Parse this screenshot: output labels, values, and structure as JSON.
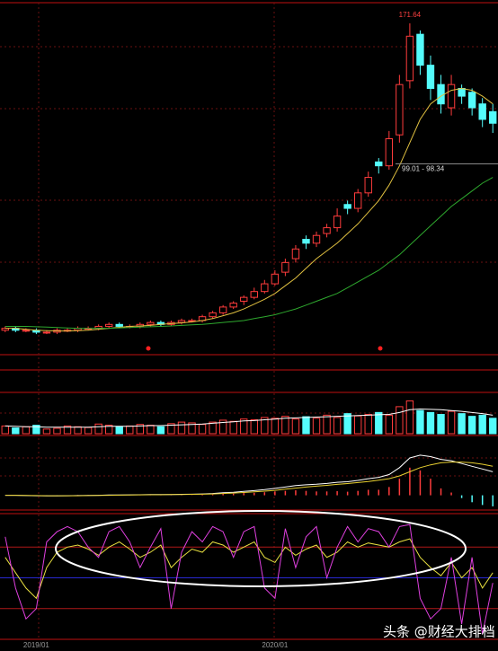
{
  "chart_data": [
    {
      "type": "candlestick",
      "up_color": "#ff3c3c",
      "down_color": "#54fcfc",
      "open": [
        13,
        14,
        13,
        13,
        12,
        12,
        13,
        13,
        14,
        14,
        15,
        16,
        15,
        15,
        16,
        17,
        16,
        17,
        18,
        18,
        20,
        22,
        25,
        28,
        30,
        33,
        37,
        43,
        50,
        60,
        58,
        63,
        66,
        78,
        76,
        84,
        100,
        98,
        114,
        142,
        166,
        150,
        140,
        128,
        138,
        136,
        130,
        126
      ],
      "high": [
        15,
        15,
        14,
        14,
        13,
        14,
        14,
        15,
        15,
        16,
        17,
        17,
        16,
        17,
        18,
        18,
        18,
        19,
        19,
        21,
        23,
        26,
        28,
        31,
        35,
        39,
        44,
        50,
        57,
        62,
        64,
        68,
        76,
        80,
        86,
        95,
        102,
        116,
        145,
        171.64,
        168,
        155,
        145,
        145,
        140,
        138,
        133,
        130
      ],
      "low": [
        12,
        12,
        12,
        11,
        11,
        11,
        12,
        12,
        13,
        13,
        14,
        14,
        14,
        14,
        15,
        15,
        15,
        16,
        17,
        17,
        19,
        21,
        24,
        26,
        29,
        32,
        36,
        41,
        48,
        55,
        56,
        61,
        64,
        73,
        74,
        82,
        94,
        96,
        110,
        138,
        145,
        132,
        125,
        124,
        130,
        124,
        118,
        115
      ],
      "close": [
        14,
        13,
        13,
        12,
        12,
        13,
        13,
        14,
        14,
        15,
        16,
        15,
        15,
        16,
        17,
        16,
        17,
        18,
        18,
        20,
        22,
        25,
        27,
        30,
        33,
        37,
        42,
        48,
        55,
        58,
        62,
        66,
        72,
        76,
        84,
        92,
        98,
        112,
        140,
        165,
        150,
        138,
        130,
        140,
        134,
        128,
        122,
        120
      ],
      "series": [
        {
          "color": "#e0c040",
          "values": [
            14,
            14,
            13.5,
            13,
            12.8,
            12.6,
            12.6,
            12.8,
            13,
            13.5,
            14,
            14.5,
            15,
            15.2,
            15.5,
            16,
            16.4,
            16.8,
            17.3,
            18,
            19,
            20.5,
            22,
            24,
            26.5,
            29,
            32,
            36,
            40,
            45,
            50,
            54,
            58,
            63,
            68,
            74,
            80,
            88,
            98,
            110,
            122,
            130,
            134,
            137,
            138,
            137,
            134,
            130
          ]
        },
        {
          "color": "#2ea82e",
          "values": [
            15,
            15,
            15,
            14.8,
            14.6,
            14.4,
            14.2,
            14,
            14,
            14,
            14,
            14.2,
            14.4,
            14.6,
            14.8,
            15,
            15.2,
            15.5,
            15.8,
            16,
            16.5,
            17,
            17.5,
            18,
            19,
            20,
            21,
            22.5,
            24,
            26,
            28,
            30,
            32,
            35,
            38,
            41,
            44,
            48,
            52,
            57,
            62,
            67,
            72,
            77,
            81,
            85,
            89,
            92
          ]
        }
      ],
      "crosshair": {
        "label": "99.01 - 98.34",
        "value": 99.01
      },
      "ylim": [
        5,
        180
      ]
    },
    {
      "type": "bar",
      "values": [
        20,
        15,
        18,
        22,
        12,
        14,
        20,
        18,
        16,
        25,
        22,
        18,
        20,
        24,
        22,
        18,
        26,
        30,
        28,
        24,
        30,
        35,
        32,
        38,
        36,
        42,
        40,
        45,
        38,
        44,
        40,
        48,
        42,
        52,
        46,
        50,
        55,
        48,
        70,
        85,
        60,
        55,
        50,
        58,
        52,
        45,
        48,
        40
      ],
      "series": [
        {
          "color": "#ffffff",
          "values": [
            20,
            19,
            18,
            18,
            17,
            17,
            17,
            17,
            17,
            18,
            19,
            19,
            19,
            20,
            21,
            21,
            22,
            23,
            24,
            25,
            27,
            29,
            31,
            33,
            34,
            36,
            38,
            40,
            41,
            42,
            43,
            44,
            45,
            46,
            47,
            48,
            49,
            50,
            55,
            62,
            64,
            63,
            62,
            60,
            58,
            55,
            52,
            48
          ]
        }
      ],
      "ylim": [
        0,
        100
      ]
    },
    {
      "type": "macd",
      "series": [
        {
          "color": "#ffffff",
          "values": [
            0,
            0,
            -0.2,
            -0.3,
            -0.4,
            -0.4,
            -0.3,
            -0.2,
            -0.1,
            0,
            0.2,
            0.2,
            0.3,
            0.4,
            0.5,
            0.5,
            0.6,
            0.7,
            0.8,
            1,
            1.3,
            1.8,
            2.2,
            2.8,
            3.4,
            4.1,
            5,
            6,
            7,
            7.6,
            8,
            8.6,
            9.4,
            9.8,
            10.8,
            12,
            13,
            15,
            20,
            27,
            29,
            28,
            26,
            25,
            23,
            21,
            19,
            17
          ]
        },
        {
          "color": "#e8d030",
          "values": [
            0,
            0,
            -0.1,
            -0.2,
            -0.3,
            -0.3,
            -0.3,
            -0.3,
            -0.2,
            -0.1,
            0,
            0.1,
            0.2,
            0.3,
            0.4,
            0.4,
            0.5,
            0.6,
            0.7,
            0.8,
            1,
            1.3,
            1.6,
            2,
            2.5,
            3,
            3.6,
            4.4,
            5.2,
            6,
            6.6,
            7.2,
            7.9,
            8.5,
            9.2,
            10,
            11,
            12,
            14,
            17,
            20,
            22,
            23.5,
            24,
            24,
            23.5,
            22.5,
            21
          ]
        }
      ],
      "histogram": [
        0,
        0,
        -0.2,
        -0.2,
        -0.2,
        -0.2,
        0,
        0.2,
        0.2,
        0.2,
        0.4,
        0.2,
        0.2,
        0.2,
        0.2,
        0.2,
        0.2,
        0.2,
        0.2,
        0.4,
        0.6,
        1,
        1.2,
        1.6,
        1.8,
        2.2,
        2.8,
        3.2,
        3.6,
        3.2,
        2.8,
        2.8,
        3,
        2.6,
        3.2,
        4,
        4,
        6,
        12,
        20,
        18,
        12,
        5,
        2,
        -2,
        -5,
        -7,
        -8
      ],
      "ylim": [
        -10,
        40
      ]
    },
    {
      "type": "line",
      "categories": [
        null,
        null,
        null,
        "2019/01",
        null,
        null,
        null,
        null,
        null,
        null,
        null,
        null,
        null,
        null,
        null,
        null,
        null,
        null,
        null,
        null,
        null,
        null,
        null,
        null,
        null,
        null,
        "2020/01",
        null,
        null,
        null,
        null,
        null,
        null,
        null,
        null,
        null,
        null,
        null,
        null,
        null,
        null,
        null,
        null,
        null,
        null,
        null,
        null,
        null
      ],
      "series": [
        {
          "color": "#e8e040",
          "values": [
            70,
            55,
            40,
            30,
            60,
            75,
            80,
            82,
            78,
            72,
            80,
            85,
            78,
            70,
            75,
            82,
            60,
            70,
            78,
            75,
            85,
            82,
            75,
            80,
            85,
            70,
            65,
            80,
            72,
            78,
            82,
            70,
            75,
            85,
            80,
            84,
            82,
            80,
            85,
            88,
            70,
            60,
            52,
            65,
            50,
            60,
            40,
            55
          ]
        },
        {
          "color": "#e040e0",
          "values": [
            90,
            40,
            10,
            20,
            85,
            95,
            100,
            95,
            80,
            70,
            95,
            100,
            85,
            60,
            80,
            98,
            20,
            75,
            95,
            85,
            100,
            95,
            70,
            95,
            100,
            40,
            30,
            98,
            60,
            90,
            100,
            50,
            80,
            100,
            85,
            98,
            95,
            80,
            100,
            102,
            30,
            10,
            20,
            70,
            5,
            70,
            -5,
            45
          ]
        }
      ],
      "levels": [
        {
          "value": 80,
          "color": "#b01818"
        },
        {
          "value": 50,
          "color": "#2828d0"
        },
        {
          "value": 20,
          "color": "#b01818"
        }
      ],
      "ylim": [
        -10,
        110
      ]
    }
  ],
  "watermark": "头条 @财经大排档"
}
